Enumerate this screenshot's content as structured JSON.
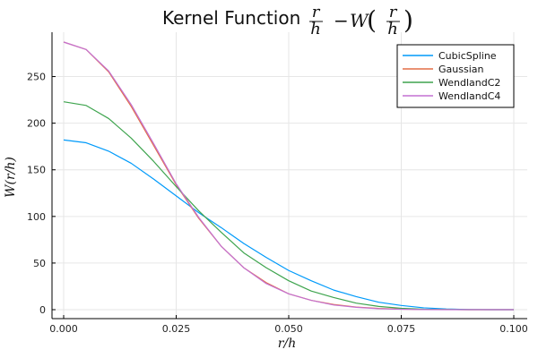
{
  "chart_data": {
    "type": "line",
    "title": "Kernel Function",
    "title_math": {
      "lhs_num": "r",
      "lhs_den": "h",
      "minus": "−",
      "func": "W",
      "arg_num": "r",
      "arg_den": "h"
    },
    "xlabel": "r/h",
    "ylabel": "W(r/h)",
    "xlim": [
      0,
      0.1
    ],
    "ylim": [
      0,
      287
    ],
    "x_ticks": [
      0,
      0.025,
      0.05,
      0.075,
      0.1
    ],
    "x_tick_labels": [
      "0.000",
      "0.025",
      "0.050",
      "0.075",
      "0.100"
    ],
    "y_ticks": [
      0,
      50,
      100,
      150,
      200,
      250
    ],
    "y_tick_labels": [
      "0",
      "50",
      "100",
      "150",
      "200",
      "250"
    ],
    "grid": true,
    "legend_position": "top-right",
    "x": [
      0,
      0.005,
      0.01,
      0.015,
      0.02,
      0.025,
      0.03,
      0.035,
      0.04,
      0.045,
      0.05,
      0.055,
      0.06,
      0.065,
      0.07,
      0.075,
      0.08,
      0.085,
      0.09,
      0.095,
      0.1
    ],
    "series": [
      {
        "name": "CubicSpline",
        "color": "#009AFA",
        "values": [
          182,
          179,
          170,
          157,
          140,
          122,
          104,
          88,
          71,
          56,
          42,
          31,
          21,
          14,
          8,
          4.5,
          2,
          0.8,
          0.2,
          0,
          0
        ]
      },
      {
        "name": "Gaussian",
        "color": "#E36F47",
        "values": [
          287,
          279,
          255,
          218,
          176,
          134,
          98,
          68,
          45,
          29,
          17,
          10,
          5.5,
          2.8,
          1.3,
          0.6,
          0.2,
          0.1,
          0,
          0,
          0
        ]
      },
      {
        "name": "WendlandC2",
        "color": "#3EA44E",
        "values": [
          223,
          219,
          205,
          184,
          159,
          132,
          106,
          83,
          61,
          45,
          31,
          20,
          13,
          7,
          3.5,
          1.5,
          0.5,
          0.1,
          0,
          0,
          0
        ]
      },
      {
        "name": "WendlandC4",
        "color": "#C371D2",
        "values": [
          287,
          279,
          256,
          220,
          178,
          135,
          99,
          68,
          45,
          28,
          17,
          10,
          5,
          2.5,
          1,
          0.4,
          0.1,
          0,
          0,
          0,
          0
        ]
      }
    ]
  }
}
